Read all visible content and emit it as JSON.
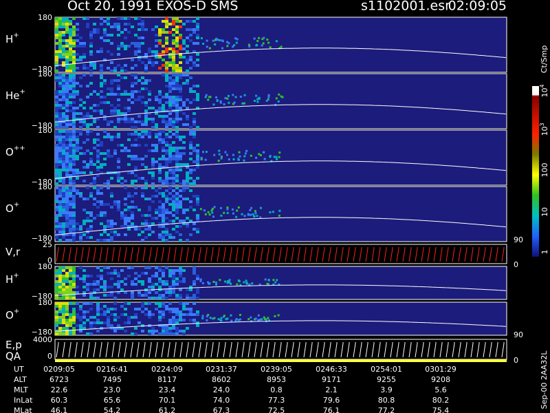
{
  "header": {
    "title": "Oct 20, 1991   EXOS-D SMS",
    "file": "s1102001.esr",
    "time": "02:09:05"
  },
  "panels": [
    {
      "label": "H",
      "sup": "+",
      "ticks": [
        "180",
        "−180"
      ]
    },
    {
      "label": "He",
      "sup": "+",
      "ticks": [
        "180",
        "−180"
      ]
    },
    {
      "label": "O",
      "sup": "++",
      "ticks": [
        "180",
        "−180"
      ]
    },
    {
      "label": "O",
      "sup": "+",
      "ticks": [
        "180",
        "−180"
      ]
    },
    {
      "label": "V,r",
      "ticks": [
        "25",
        "0"
      ],
      "right_ticks": [
        "90",
        "0"
      ]
    },
    {
      "label": "H",
      "sup": "+",
      "ticks": [
        "180",
        "−180"
      ]
    },
    {
      "label": "O",
      "sup": "+",
      "ticks": [
        "180",
        "−180"
      ]
    },
    {
      "label": "E,p",
      "label2": "QA",
      "ticks": [
        "4000",
        "0"
      ],
      "right_ticks": [
        "90",
        "0"
      ]
    }
  ],
  "colorbar": {
    "title": "Ct/Smp",
    "ticks": [
      {
        "base": "10",
        "sup": "4"
      },
      {
        "base": "10",
        "sup": "3"
      },
      {
        "base": "100"
      },
      {
        "base": "10"
      },
      {
        "base": "1"
      }
    ]
  },
  "table": {
    "rows": [
      {
        "label": "UT",
        "values": [
          "0209:05",
          "0216:41",
          "0224:09",
          "0231:37",
          "0239:05",
          "0246:33",
          "0254:01",
          "0301:29"
        ]
      },
      {
        "label": "ALT",
        "values": [
          "6723",
          "7495",
          "8117",
          "8602",
          "8953",
          "9171",
          "9255",
          "9208"
        ]
      },
      {
        "label": "MLT",
        "values": [
          "22.6",
          "23.0",
          "23.4",
          "24.0",
          "0.8",
          "2.1",
          "3.9",
          "5.6"
        ]
      },
      {
        "label": "InLat",
        "values": [
          "60.3",
          "65.6",
          "70.1",
          "74.0",
          "77.3",
          "79.6",
          "80.8",
          "80.2"
        ]
      },
      {
        "label": "MLat",
        "values": [
          "46.1",
          "54.2",
          "61.2",
          "67.3",
          "72.5",
          "76.1",
          "77.2",
          "75.4"
        ]
      }
    ]
  },
  "footer_note": "Sep-00  2AA32L"
}
